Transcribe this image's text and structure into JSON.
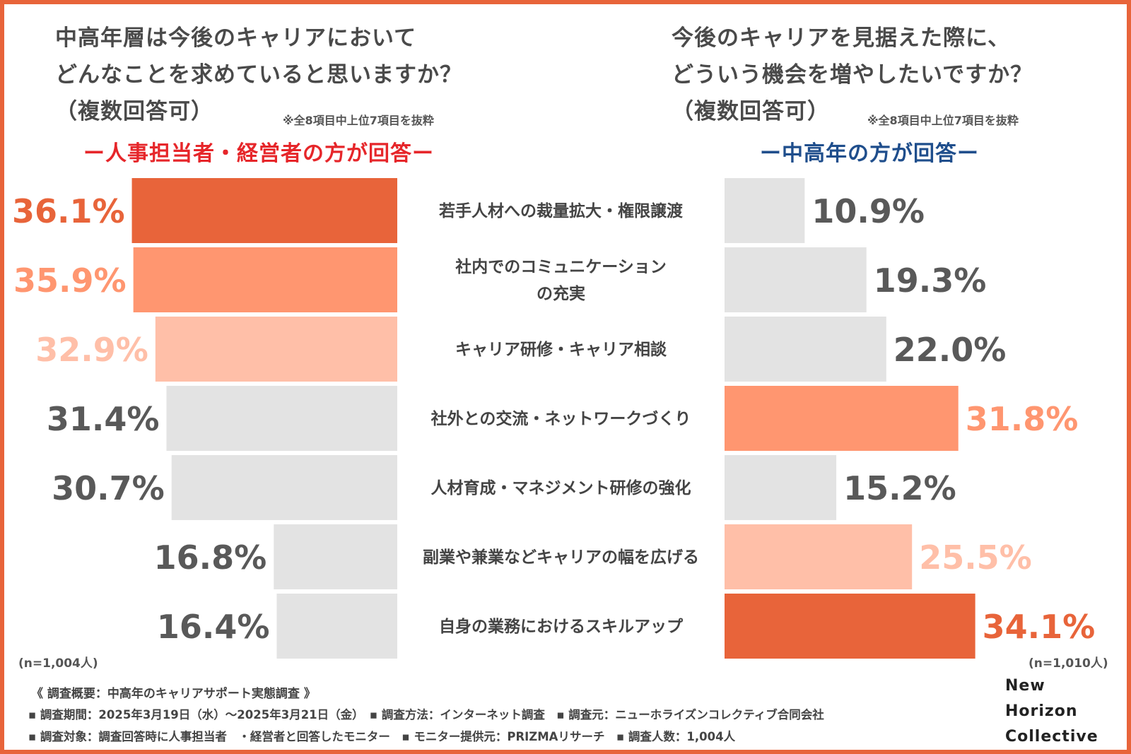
{
  "left_panel": {
    "title_lines": [
      "中高年層は今後のキャリアにおいて",
      "どんなことを求めていると思いますか？",
      "（複数回答可）"
    ],
    "note": "※全8項目中上位7項目を抜粋",
    "subhead": "ー人事担当者・経営者の方が回答ー",
    "sample": "(n=1,004人)"
  },
  "right_panel": {
    "title_lines": [
      "今後のキャリアを見据えた際に、",
      "どういう機会を増やしたいですか？",
      "（複数回答可）"
    ],
    "note": "※全8項目中上位7項目を抜粋",
    "subhead": "ー中高年の方が回答ー",
    "sample": "(n=1,010人)"
  },
  "colors": {
    "border": "#e8643a",
    "rank1": "#e8643a",
    "rank2": "#ff9670",
    "rank3": "#ffbfa8",
    "neutral": "#e3e3e3",
    "neutral_text": "#595959",
    "left_subhead": "#e6262a",
    "right_subhead": "#1f4e8c"
  },
  "chart_data": {
    "type": "bar",
    "orientation": "horizontal-butterfly",
    "unit": "%",
    "xlim": [
      0,
      40
    ],
    "categories": [
      "若手人材への裁量拡大・権限譲渡",
      "社内でのコミュニケーション\nの充実",
      "キャリア研修・キャリア相談",
      "社外との交流・ネットワークづくり",
      "人材育成・マネジメント研修の強化",
      "副業や兼業などキャリアの幅を広げる",
      "自身の業務におけるスキルアップ"
    ],
    "series": [
      {
        "name": "人事担当者・経営者の方が回答",
        "values": [
          36.1,
          35.9,
          32.9,
          31.4,
          30.7,
          16.8,
          16.4
        ],
        "labels": [
          "36.1%",
          "35.9%",
          "32.9%",
          "31.4%",
          "30.7%",
          "16.8%",
          "16.4%"
        ],
        "colors": [
          "rank1",
          "rank2",
          "rank3",
          "neutral",
          "neutral",
          "neutral",
          "neutral"
        ]
      },
      {
        "name": "中高年の方が回答",
        "values": [
          10.9,
          19.3,
          22.0,
          31.8,
          15.2,
          25.5,
          34.1
        ],
        "labels": [
          "10.9%",
          "19.3%",
          "22.0%",
          "31.8%",
          "15.2%",
          "25.5%",
          "34.1%"
        ],
        "colors": [
          "neutral",
          "neutral",
          "neutral",
          "rank2",
          "neutral",
          "rank3",
          "rank1"
        ]
      }
    ]
  },
  "footer": {
    "summary": "《 調査概要：中高年のキャリアサポート実態調査 》",
    "line1": "▪ 調査期間：2025年3月19日（水）〜2025年3月21日（金）　▪ 調査方法：インターネット調査　▪ 調査元：ニューホライズンコレクティブ合同会社",
    "line2": "▪ 調査対象：調査回答時に人事担当者　・経営者と回答したモニター　▪ モニター提供元：PRIZMAリサーチ　▪ 調査人数：1,004人"
  },
  "brand": {
    "lines": [
      "New",
      "Horizon",
      "Collective"
    ]
  }
}
